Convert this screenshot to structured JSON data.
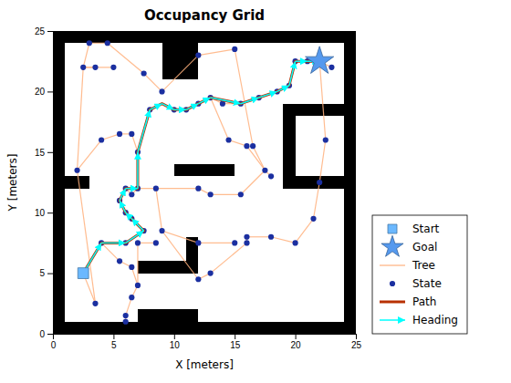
{
  "chart_data": {
    "type": "map",
    "title": "Occupancy Grid",
    "xlabel": "X [meters]",
    "ylabel": "Y [meters]",
    "xlim": [
      0,
      25
    ],
    "ylim": [
      0,
      25
    ],
    "xticks": [
      0,
      5,
      10,
      15,
      20,
      25
    ],
    "yticks": [
      0,
      5,
      10,
      15,
      20,
      25
    ],
    "legend": "lower right",
    "walls": [
      [
        0,
        0,
        25,
        1
      ],
      [
        0,
        24,
        25,
        1
      ],
      [
        0,
        0,
        1,
        25
      ],
      [
        24,
        0,
        1,
        25
      ],
      [
        1,
        12,
        2,
        1
      ],
      [
        10,
        13,
        5,
        1
      ],
      [
        9,
        21,
        3,
        4
      ],
      [
        19,
        12,
        5,
        1
      ],
      [
        19,
        18,
        5,
        1
      ],
      [
        19,
        12,
        1,
        7
      ],
      [
        7,
        5,
        4,
        1
      ],
      [
        11,
        5,
        1,
        3
      ],
      [
        7,
        1,
        5,
        1
      ]
    ],
    "series": [
      {
        "name": "Start",
        "type": "scatter",
        "marker": "square",
        "color": "#6BB8FF",
        "x": [
          2.5
        ],
        "y": [
          5.0
        ]
      },
      {
        "name": "Goal",
        "type": "scatter",
        "marker": "star",
        "color": "#5599EE",
        "x": [
          22.0
        ],
        "y": [
          22.5
        ]
      },
      {
        "name": "Tree",
        "type": "segments",
        "line_style": "solid",
        "color": "#FFB07C",
        "segments": [
          [
            [
              2.5,
              5.0
            ],
            [
              3.5,
              2.5
            ]
          ],
          [
            [
              2.5,
              5.0
            ],
            [
              4.0,
              7.5
            ]
          ],
          [
            [
              4.0,
              7.5
            ],
            [
              5.5,
              6.0
            ]
          ],
          [
            [
              5.5,
              6.0
            ],
            [
              6.5,
              5.5
            ]
          ],
          [
            [
              6.5,
              5.5
            ],
            [
              7.0,
              4.0
            ]
          ],
          [
            [
              7.0,
              4.0
            ],
            [
              6.5,
              3.0
            ]
          ],
          [
            [
              6.5,
              3.0
            ],
            [
              6.0,
              1.5
            ]
          ],
          [
            [
              6.0,
              1.5
            ],
            [
              6.0,
              1.0
            ]
          ],
          [
            [
              4.0,
              7.5
            ],
            [
              6.0,
              7.5
            ]
          ],
          [
            [
              6.0,
              7.5
            ],
            [
              7.5,
              8.5
            ]
          ],
          [
            [
              7.5,
              8.5
            ],
            [
              6.5,
              9.5
            ]
          ],
          [
            [
              6.5,
              9.5
            ],
            [
              6.0,
              10.0
            ]
          ],
          [
            [
              6.0,
              10.0
            ],
            [
              5.5,
              11.0
            ]
          ],
          [
            [
              5.5,
              11.0
            ],
            [
              6.0,
              12.0
            ]
          ],
          [
            [
              6.0,
              12.0
            ],
            [
              6.5,
              11.5
            ]
          ],
          [
            [
              6.5,
              11.5
            ],
            [
              7.0,
              12.0
            ]
          ],
          [
            [
              7.0,
              12.0
            ],
            [
              7.0,
              15.0
            ]
          ],
          [
            [
              7.0,
              15.0
            ],
            [
              6.5,
              16.5
            ]
          ],
          [
            [
              6.5,
              16.5
            ],
            [
              5.5,
              16.5
            ]
          ],
          [
            [
              5.5,
              16.5
            ],
            [
              4.0,
              16.0
            ]
          ],
          [
            [
              2.0,
              13.5
            ],
            [
              4.0,
              16.0
            ]
          ],
          [
            [
              7.0,
              15.0
            ],
            [
              8.0,
              18.5
            ]
          ],
          [
            [
              8.0,
              18.5
            ],
            [
              9.0,
              19.0
            ]
          ],
          [
            [
              9.0,
              19.0
            ],
            [
              10.0,
              18.5
            ]
          ],
          [
            [
              10.0,
              18.5
            ],
            [
              11.0,
              18.5
            ]
          ],
          [
            [
              11.0,
              18.5
            ],
            [
              12.0,
              19.0
            ]
          ],
          [
            [
              12.0,
              19.0
            ],
            [
              13.0,
              19.5
            ]
          ],
          [
            [
              13.0,
              19.5
            ],
            [
              14.0,
              19.0
            ]
          ],
          [
            [
              14.0,
              19.0
            ],
            [
              15.5,
              19.0
            ]
          ],
          [
            [
              15.5,
              19.0
            ],
            [
              17.0,
              19.5
            ]
          ],
          [
            [
              17.0,
              19.5
            ],
            [
              18.5,
              20.0
            ]
          ],
          [
            [
              18.5,
              20.0
            ],
            [
              19.5,
              20.5
            ]
          ],
          [
            [
              19.5,
              20.5
            ],
            [
              20.0,
              22.5
            ]
          ],
          [
            [
              20.0,
              22.5
            ],
            [
              21.0,
              22.5
            ]
          ],
          [
            [
              21.0,
              22.5
            ],
            [
              22.0,
              22.5
            ]
          ],
          [
            [
              22.0,
              22.5
            ],
            [
              23.0,
              22.0
            ]
          ],
          [
            [
              3.5,
              2.5
            ],
            [
              2.0,
              13.5
            ]
          ],
          [
            [
              2.0,
              13.5
            ],
            [
              2.5,
              22.0
            ]
          ],
          [
            [
              2.5,
              22.0
            ],
            [
              3.0,
              24.0
            ]
          ],
          [
            [
              3.0,
              24.0
            ],
            [
              4.5,
              24.0
            ]
          ],
          [
            [
              2.5,
              22.0
            ],
            [
              5.0,
              22.0
            ]
          ],
          [
            [
              4.5,
              24.0
            ],
            [
              7.5,
              21.5
            ]
          ],
          [
            [
              7.5,
              21.5
            ],
            [
              9.0,
              20.0
            ]
          ],
          [
            [
              6.0,
              12.0
            ],
            [
              8.5,
              12.0
            ]
          ],
          [
            [
              8.5,
              12.0
            ],
            [
              9.0,
              8.5
            ]
          ],
          [
            [
              9.0,
              8.5
            ],
            [
              12.0,
              4.5
            ]
          ],
          [
            [
              12.0,
              4.5
            ],
            [
              13.0,
              5.0
            ]
          ],
          [
            [
              13.0,
              5.0
            ],
            [
              16.0,
              7.5
            ]
          ],
          [
            [
              16.0,
              7.5
            ],
            [
              16.0,
              8.0
            ]
          ],
          [
            [
              16.0,
              8.0
            ],
            [
              18.0,
              8.0
            ]
          ],
          [
            [
              18.0,
              8.0
            ],
            [
              20.0,
              7.5
            ]
          ],
          [
            [
              20.0,
              7.5
            ],
            [
              21.5,
              9.5
            ]
          ],
          [
            [
              21.5,
              9.5
            ],
            [
              22.0,
              12.5
            ]
          ],
          [
            [
              22.0,
              12.5
            ],
            [
              22.5,
              16.0
            ]
          ],
          [
            [
              22.5,
              16.0
            ],
            [
              22.0,
              22.5
            ]
          ],
          [
            [
              9.0,
              20.0
            ],
            [
              12.0,
              23.0
            ]
          ],
          [
            [
              12.0,
              23.0
            ],
            [
              15.0,
              23.5
            ]
          ],
          [
            [
              15.0,
              23.5
            ],
            [
              16.5,
              15.5
            ]
          ],
          [
            [
              16.5,
              15.5
            ],
            [
              17.5,
              13.5
            ]
          ],
          [
            [
              17.5,
              13.5
            ],
            [
              18.0,
              13.0
            ]
          ],
          [
            [
              13.0,
              19.5
            ],
            [
              14.5,
              16.0
            ]
          ],
          [
            [
              14.5,
              16.0
            ],
            [
              16.0,
              15.5
            ]
          ],
          [
            [
              16.0,
              15.5
            ],
            [
              17.5,
              13.5
            ]
          ],
          [
            [
              8.5,
              12.0
            ],
            [
              12.0,
              12.0
            ]
          ],
          [
            [
              12.0,
              12.0
            ],
            [
              13.0,
              11.5
            ]
          ],
          [
            [
              13.0,
              11.5
            ],
            [
              15.5,
              11.5
            ]
          ],
          [
            [
              15.5,
              11.5
            ],
            [
              17.5,
              13.5
            ]
          ],
          [
            [
              9.0,
              8.5
            ],
            [
              12.0,
              7.5
            ]
          ],
          [
            [
              12.0,
              7.5
            ],
            [
              15.0,
              7.5
            ]
          ],
          [
            [
              2.5,
              22.0
            ],
            [
              3.5,
              22.0
            ]
          ],
          [
            [
              7.0,
              4.0
            ],
            [
              7.0,
              7.5
            ]
          ],
          [
            [
              7.0,
              7.5
            ],
            [
              8.5,
              7.5
            ]
          ]
        ]
      },
      {
        "name": "State",
        "type": "scatter",
        "marker": "circle",
        "color": "#1B2FA0",
        "x": [
          3.5,
          2.0,
          2.5,
          3.0,
          4.5,
          4.0,
          5.5,
          6.5,
          7.0,
          6.5,
          6.0,
          6.0,
          6.0,
          7.5,
          6.5,
          6.0,
          5.5,
          6.0,
          6.5,
          7.0,
          7.0,
          8.5,
          9.0,
          9.0,
          10.0,
          11.0,
          12.0,
          12.0,
          12.0,
          12.0,
          12.0,
          13.0,
          13.0,
          13.0,
          14.5,
          15.0,
          15.5,
          15.5,
          16.0,
          16.0,
          16.0,
          16.5,
          17.0,
          17.5,
          18.0,
          18.0,
          18.5,
          19.5,
          20.0,
          20.0,
          21.0,
          21.5,
          22.0,
          22.0,
          22.5,
          23.0,
          5.0,
          3.5,
          4.0,
          5.5,
          6.5,
          7.5,
          8.0,
          14.0,
          15.0,
          7.0,
          8.5
        ],
        "y": [
          2.5,
          13.5,
          22.0,
          24.0,
          24.0,
          7.5,
          6.0,
          5.5,
          4.0,
          3.0,
          1.5,
          1.0,
          7.5,
          8.5,
          9.5,
          10.0,
          11.0,
          12.0,
          11.5,
          12.0,
          15.0,
          12.0,
          8.5,
          20.0,
          18.5,
          18.5,
          19.0,
          23.0,
          12.0,
          4.5,
          7.5,
          19.5,
          11.5,
          5.0,
          16.0,
          23.5,
          11.5,
          19.0,
          7.5,
          15.5,
          8.0,
          15.5,
          19.5,
          13.5,
          8.0,
          13.0,
          20.0,
          20.5,
          22.5,
          7.5,
          22.5,
          9.5,
          22.5,
          12.5,
          16.0,
          22.0,
          22.0,
          22.0,
          16.0,
          16.5,
          16.5,
          21.5,
          18.5,
          19.0,
          7.5,
          7.5,
          7.5
        ]
      },
      {
        "name": "Path",
        "type": "line",
        "line_style": "solid",
        "color": "#B83000",
        "x": [
          2.5,
          4.0,
          6.0,
          7.5,
          6.5,
          6.0,
          5.5,
          6.0,
          7.0,
          7.0,
          8.0,
          9.0,
          10.0,
          11.0,
          12.0,
          13.0,
          15.5,
          17.0,
          18.5,
          19.5,
          20.0,
          21.0,
          22.0
        ],
        "y": [
          5.0,
          7.5,
          7.5,
          8.5,
          9.5,
          10.0,
          11.0,
          12.0,
          12.0,
          15.0,
          18.5,
          19.0,
          18.5,
          18.5,
          19.0,
          19.5,
          19.0,
          19.5,
          20.0,
          20.5,
          22.5,
          22.5,
          22.5
        ]
      },
      {
        "name": "Heading",
        "type": "arrows",
        "marker": "arrow",
        "color": "#00FFFF",
        "x": [
          2.5,
          4.0,
          6.0,
          7.5,
          6.5,
          6.0,
          5.5,
          6.0,
          7.0,
          7.0,
          8.0,
          9.0,
          10.0,
          11.0,
          12.0,
          13.0,
          15.5,
          17.0,
          18.5,
          19.5,
          20.0,
          21.0,
          22.0
        ],
        "y": [
          5.0,
          7.5,
          7.5,
          8.5,
          9.5,
          10.0,
          11.0,
          12.0,
          12.0,
          15.0,
          18.5,
          19.0,
          18.5,
          18.5,
          19.0,
          19.5,
          19.0,
          19.5,
          20.0,
          20.5,
          22.5,
          22.5,
          22.5
        ]
      }
    ]
  }
}
